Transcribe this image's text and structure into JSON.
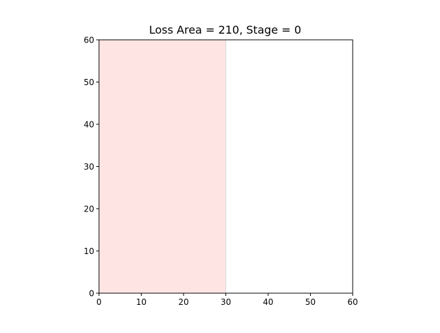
{
  "chart_data": {
    "type": "area",
    "title": "Loss Area = 210, Stage = 0",
    "xlabel": "",
    "ylabel": "",
    "xlim": [
      0,
      60
    ],
    "ylim": [
      0,
      60
    ],
    "xticks": [
      "0",
      "10",
      "20",
      "30",
      "40",
      "50",
      "60"
    ],
    "yticks": [
      "0",
      "10",
      "20",
      "30",
      "40",
      "50",
      "60"
    ],
    "grid": false,
    "regions": [
      {
        "x": [
          0,
          30
        ],
        "y": [
          0,
          60
        ],
        "color": "#ffe4e4",
        "edge_color": "#d9d9d9"
      }
    ]
  }
}
